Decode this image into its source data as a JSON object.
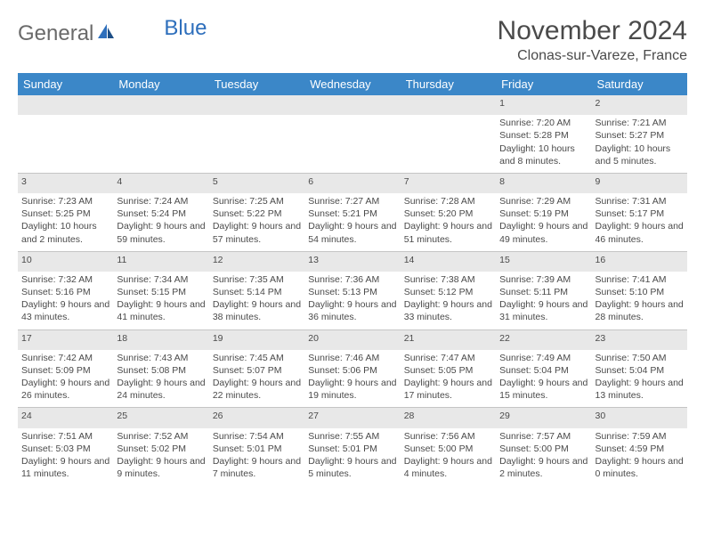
{
  "logo": {
    "text1": "General",
    "text2": "Blue"
  },
  "title": "November 2024",
  "location": "Clonas-sur-Vareze, France",
  "colors": {
    "header_bg": "#3b87c8",
    "header_fg": "#ffffff",
    "daynum_bg": "#e8e8e8",
    "border": "#c5c5c5",
    "text": "#4a4a4a",
    "logo_gray": "#6a6a6a",
    "logo_blue": "#2e6fbc"
  },
  "day_names": [
    "Sunday",
    "Monday",
    "Tuesday",
    "Wednesday",
    "Thursday",
    "Friday",
    "Saturday"
  ],
  "weeks": [
    {
      "nums": [
        "",
        "",
        "",
        "",
        "",
        "1",
        "2"
      ],
      "cells": [
        {
          "sunrise": "",
          "sunset": "",
          "daylight": ""
        },
        {
          "sunrise": "",
          "sunset": "",
          "daylight": ""
        },
        {
          "sunrise": "",
          "sunset": "",
          "daylight": ""
        },
        {
          "sunrise": "",
          "sunset": "",
          "daylight": ""
        },
        {
          "sunrise": "",
          "sunset": "",
          "daylight": ""
        },
        {
          "sunrise": "Sunrise: 7:20 AM",
          "sunset": "Sunset: 5:28 PM",
          "daylight": "Daylight: 10 hours and 8 minutes."
        },
        {
          "sunrise": "Sunrise: 7:21 AM",
          "sunset": "Sunset: 5:27 PM",
          "daylight": "Daylight: 10 hours and 5 minutes."
        }
      ]
    },
    {
      "nums": [
        "3",
        "4",
        "5",
        "6",
        "7",
        "8",
        "9"
      ],
      "cells": [
        {
          "sunrise": "Sunrise: 7:23 AM",
          "sunset": "Sunset: 5:25 PM",
          "daylight": "Daylight: 10 hours and 2 minutes."
        },
        {
          "sunrise": "Sunrise: 7:24 AM",
          "sunset": "Sunset: 5:24 PM",
          "daylight": "Daylight: 9 hours and 59 minutes."
        },
        {
          "sunrise": "Sunrise: 7:25 AM",
          "sunset": "Sunset: 5:22 PM",
          "daylight": "Daylight: 9 hours and 57 minutes."
        },
        {
          "sunrise": "Sunrise: 7:27 AM",
          "sunset": "Sunset: 5:21 PM",
          "daylight": "Daylight: 9 hours and 54 minutes."
        },
        {
          "sunrise": "Sunrise: 7:28 AM",
          "sunset": "Sunset: 5:20 PM",
          "daylight": "Daylight: 9 hours and 51 minutes."
        },
        {
          "sunrise": "Sunrise: 7:29 AM",
          "sunset": "Sunset: 5:19 PM",
          "daylight": "Daylight: 9 hours and 49 minutes."
        },
        {
          "sunrise": "Sunrise: 7:31 AM",
          "sunset": "Sunset: 5:17 PM",
          "daylight": "Daylight: 9 hours and 46 minutes."
        }
      ]
    },
    {
      "nums": [
        "10",
        "11",
        "12",
        "13",
        "14",
        "15",
        "16"
      ],
      "cells": [
        {
          "sunrise": "Sunrise: 7:32 AM",
          "sunset": "Sunset: 5:16 PM",
          "daylight": "Daylight: 9 hours and 43 minutes."
        },
        {
          "sunrise": "Sunrise: 7:34 AM",
          "sunset": "Sunset: 5:15 PM",
          "daylight": "Daylight: 9 hours and 41 minutes."
        },
        {
          "sunrise": "Sunrise: 7:35 AM",
          "sunset": "Sunset: 5:14 PM",
          "daylight": "Daylight: 9 hours and 38 minutes."
        },
        {
          "sunrise": "Sunrise: 7:36 AM",
          "sunset": "Sunset: 5:13 PM",
          "daylight": "Daylight: 9 hours and 36 minutes."
        },
        {
          "sunrise": "Sunrise: 7:38 AM",
          "sunset": "Sunset: 5:12 PM",
          "daylight": "Daylight: 9 hours and 33 minutes."
        },
        {
          "sunrise": "Sunrise: 7:39 AM",
          "sunset": "Sunset: 5:11 PM",
          "daylight": "Daylight: 9 hours and 31 minutes."
        },
        {
          "sunrise": "Sunrise: 7:41 AM",
          "sunset": "Sunset: 5:10 PM",
          "daylight": "Daylight: 9 hours and 28 minutes."
        }
      ]
    },
    {
      "nums": [
        "17",
        "18",
        "19",
        "20",
        "21",
        "22",
        "23"
      ],
      "cells": [
        {
          "sunrise": "Sunrise: 7:42 AM",
          "sunset": "Sunset: 5:09 PM",
          "daylight": "Daylight: 9 hours and 26 minutes."
        },
        {
          "sunrise": "Sunrise: 7:43 AM",
          "sunset": "Sunset: 5:08 PM",
          "daylight": "Daylight: 9 hours and 24 minutes."
        },
        {
          "sunrise": "Sunrise: 7:45 AM",
          "sunset": "Sunset: 5:07 PM",
          "daylight": "Daylight: 9 hours and 22 minutes."
        },
        {
          "sunrise": "Sunrise: 7:46 AM",
          "sunset": "Sunset: 5:06 PM",
          "daylight": "Daylight: 9 hours and 19 minutes."
        },
        {
          "sunrise": "Sunrise: 7:47 AM",
          "sunset": "Sunset: 5:05 PM",
          "daylight": "Daylight: 9 hours and 17 minutes."
        },
        {
          "sunrise": "Sunrise: 7:49 AM",
          "sunset": "Sunset: 5:04 PM",
          "daylight": "Daylight: 9 hours and 15 minutes."
        },
        {
          "sunrise": "Sunrise: 7:50 AM",
          "sunset": "Sunset: 5:04 PM",
          "daylight": "Daylight: 9 hours and 13 minutes."
        }
      ]
    },
    {
      "nums": [
        "24",
        "25",
        "26",
        "27",
        "28",
        "29",
        "30"
      ],
      "cells": [
        {
          "sunrise": "Sunrise: 7:51 AM",
          "sunset": "Sunset: 5:03 PM",
          "daylight": "Daylight: 9 hours and 11 minutes."
        },
        {
          "sunrise": "Sunrise: 7:52 AM",
          "sunset": "Sunset: 5:02 PM",
          "daylight": "Daylight: 9 hours and 9 minutes."
        },
        {
          "sunrise": "Sunrise: 7:54 AM",
          "sunset": "Sunset: 5:01 PM",
          "daylight": "Daylight: 9 hours and 7 minutes."
        },
        {
          "sunrise": "Sunrise: 7:55 AM",
          "sunset": "Sunset: 5:01 PM",
          "daylight": "Daylight: 9 hours and 5 minutes."
        },
        {
          "sunrise": "Sunrise: 7:56 AM",
          "sunset": "Sunset: 5:00 PM",
          "daylight": "Daylight: 9 hours and 4 minutes."
        },
        {
          "sunrise": "Sunrise: 7:57 AM",
          "sunset": "Sunset: 5:00 PM",
          "daylight": "Daylight: 9 hours and 2 minutes."
        },
        {
          "sunrise": "Sunrise: 7:59 AM",
          "sunset": "Sunset: 4:59 PM",
          "daylight": "Daylight: 9 hours and 0 minutes."
        }
      ]
    }
  ]
}
